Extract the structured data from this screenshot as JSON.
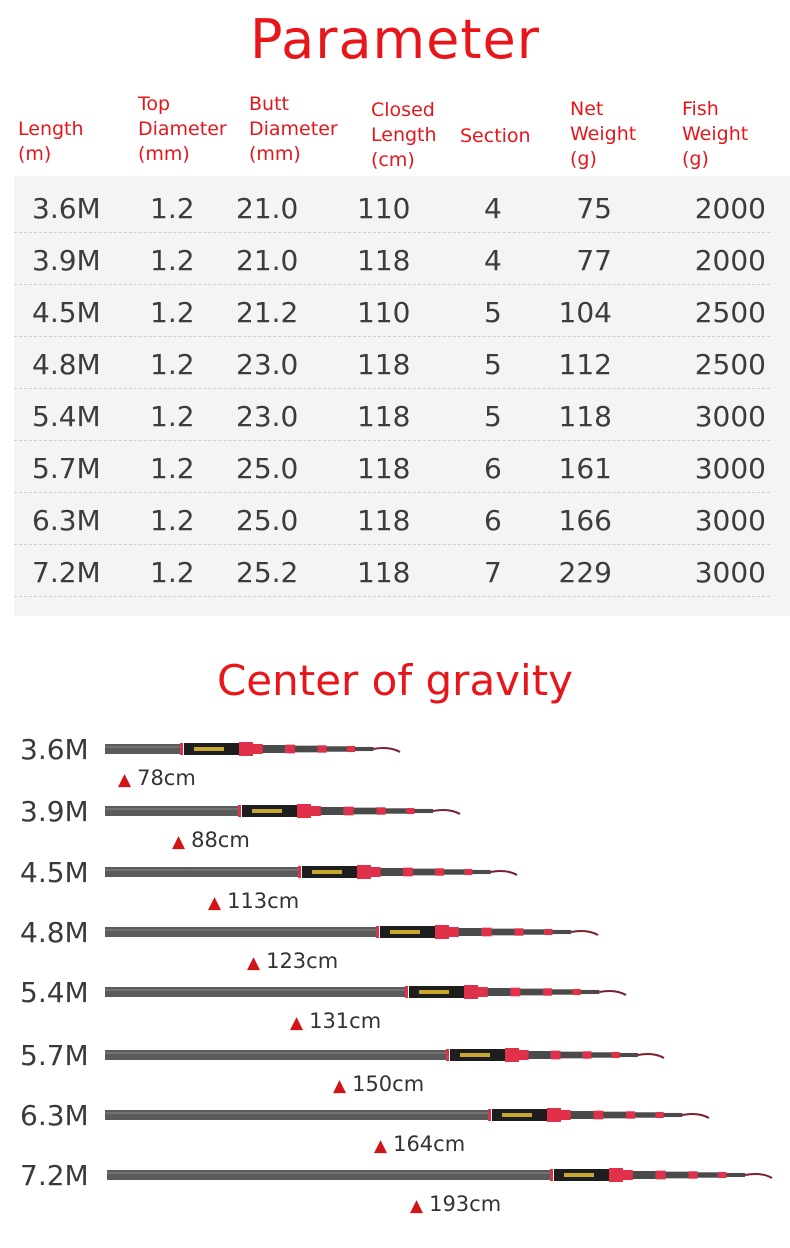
{
  "parameter_title": "Parameter",
  "headers": [
    "Length\n(m)",
    "Top\nDiameter\n(mm)",
    "Butt\nDiameter\n(mm)",
    "Closed\nLength\n(cm)",
    "Section",
    "Net\nWeight\n(g)",
    "Fish\nWeight\n(g)"
  ],
  "rows": [
    [
      "3.6M",
      "1.2",
      "21.0",
      "110",
      "4",
      "75",
      "2000"
    ],
    [
      "3.9M",
      "1.2",
      "21.0",
      "118",
      "4",
      "77",
      "2000"
    ],
    [
      "4.5M",
      "1.2",
      "21.2",
      "110",
      "5",
      "104",
      "2500"
    ],
    [
      "4.8M",
      "1.2",
      "23.0",
      "118",
      "5",
      "112",
      "2500"
    ],
    [
      "5.4M",
      "1.2",
      "23.0",
      "118",
      "5",
      "118",
      "3000"
    ],
    [
      "5.7M",
      "1.2",
      "25.0",
      "118",
      "6",
      "161",
      "3000"
    ],
    [
      "6.3M",
      "1.2",
      "25.0",
      "118",
      "6",
      "166",
      "3000"
    ],
    [
      "7.2M",
      "1.2",
      "25.2",
      "118",
      "7",
      "229",
      "3000"
    ]
  ],
  "gravity_title": "Center of gravity",
  "rods": [
    {
      "length": "3.6M",
      "cog": "78cm"
    },
    {
      "length": "3.9M",
      "cog": "88cm"
    },
    {
      "length": "4.5M",
      "cog": "113cm"
    },
    {
      "length": "4.8M",
      "cog": "123cm"
    },
    {
      "length": "5.4M",
      "cog": "131cm"
    },
    {
      "length": "5.7M",
      "cog": "150cm"
    },
    {
      "length": "6.3M",
      "cog": "164cm"
    },
    {
      "length": "7.2M",
      "cog": "193cm"
    }
  ],
  "colors": {
    "accent": "#e8161a",
    "rod": "#555555",
    "rod_accent": "#e0304a"
  },
  "icons": {
    "cog_marker": "triangle-up-icon"
  }
}
